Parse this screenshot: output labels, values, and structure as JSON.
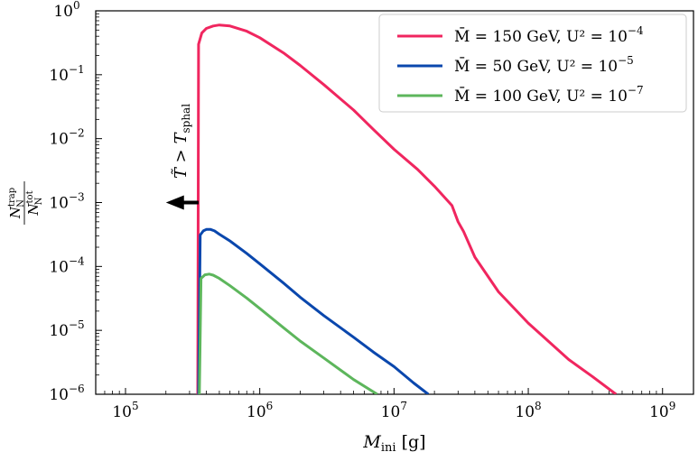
{
  "chart_data": {
    "type": "line",
    "xscale": "log",
    "yscale": "log",
    "xlim": [
      60000,
      1700000000
    ],
    "ylim": [
      1e-06,
      1
    ],
    "xlabel": "M_ini [g]",
    "ylabel": "N_N^trap / N_N^tot",
    "x_ticks": [
      {
        "value": 100000,
        "base": "10",
        "exp": "5"
      },
      {
        "value": 1000000,
        "base": "10",
        "exp": "6"
      },
      {
        "value": 10000000,
        "base": "10",
        "exp": "7"
      },
      {
        "value": 100000000,
        "base": "10",
        "exp": "8"
      },
      {
        "value": 1000000000,
        "base": "10",
        "exp": "9"
      }
    ],
    "y_ticks": [
      {
        "value": 1,
        "base": "10",
        "exp": "0"
      },
      {
        "value": 0.1,
        "base": "10",
        "exp": "−1"
      },
      {
        "value": 0.01,
        "base": "10",
        "exp": "−2"
      },
      {
        "value": 0.001,
        "base": "10",
        "exp": "−3"
      },
      {
        "value": 0.0001,
        "base": "10",
        "exp": "−4"
      },
      {
        "value": 1e-05,
        "base": "10",
        "exp": "−5"
      },
      {
        "value": 1e-06,
        "base": "10",
        "exp": "−6"
      }
    ],
    "annotation": {
      "text": "T̃ > T_sphal",
      "arrow_from_x": 350000,
      "arrow_to_x": 200000,
      "y": 0.001
    },
    "legend": {
      "position": "top-right",
      "entries": [
        {
          "m": "M̄ = 150 GeV,",
          "u": "U² = 10",
          "exp": "−4",
          "color": "#f0265f"
        },
        {
          "m": "M̄ = 50  GeV,",
          "u": "U² = 10",
          "exp": "−5",
          "color": "#0a47ad"
        },
        {
          "m": "M̄ = 100 GeV,",
          "u": "U² = 10",
          "exp": "−7",
          "color": "#5db65c"
        }
      ]
    },
    "series": [
      {
        "name": "M̄ = 150 GeV, U² = 10^-4",
        "color": "#f0265f",
        "x": [
          345000,
          350000,
          370000,
          400000,
          450000,
          500000,
          600000,
          800000,
          1000000,
          1500000,
          2000000,
          3000000,
          5000000,
          7000000,
          10000000,
          15000000,
          20000000,
          27000000,
          30000000,
          33000000,
          40000000,
          60000000,
          100000000,
          200000000,
          300000000,
          450000000
        ],
        "y": [
          1e-06,
          0.3,
          0.45,
          0.53,
          0.58,
          0.6,
          0.58,
          0.48,
          0.38,
          0.22,
          0.14,
          0.07,
          0.028,
          0.014,
          0.0068,
          0.0033,
          0.0018,
          0.0009,
          0.0005,
          0.00035,
          0.00014,
          4e-05,
          1.3e-05,
          3.5e-06,
          1.9e-06,
          1e-06
        ]
      },
      {
        "name": "M̄ = 50 GeV, U² = 10^-5",
        "color": "#0a47ad",
        "x": [
          350000,
          360000,
          380000,
          400000,
          430000,
          460000,
          500000,
          600000,
          800000,
          1000000,
          1500000,
          2000000,
          3000000,
          5000000,
          7000000,
          10000000,
          14000000,
          18000000
        ],
        "y": [
          1e-06,
          0.00031,
          0.00036,
          0.00038,
          0.00038,
          0.00036,
          0.00032,
          0.00025,
          0.00016,
          0.00011,
          5.5e-05,
          3.3e-05,
          1.7e-05,
          7.8e-06,
          4.6e-06,
          2.7e-06,
          1.5e-06,
          1e-06
        ]
      },
      {
        "name": "M̄ = 100 GeV, U² = 10^-7",
        "color": "#5db65c",
        "x": [
          355000,
          365000,
          390000,
          420000,
          450000,
          500000,
          600000,
          800000,
          1000000,
          1500000,
          2000000,
          3000000,
          5000000,
          7500000
        ],
        "y": [
          1e-06,
          6.5e-05,
          7.4e-05,
          7.6e-05,
          7.3e-05,
          6.5e-05,
          5e-05,
          3.2e-05,
          2.2e-05,
          1.1e-05,
          6.8e-06,
          3.7e-06,
          1.7e-06,
          1e-06
        ]
      }
    ]
  }
}
